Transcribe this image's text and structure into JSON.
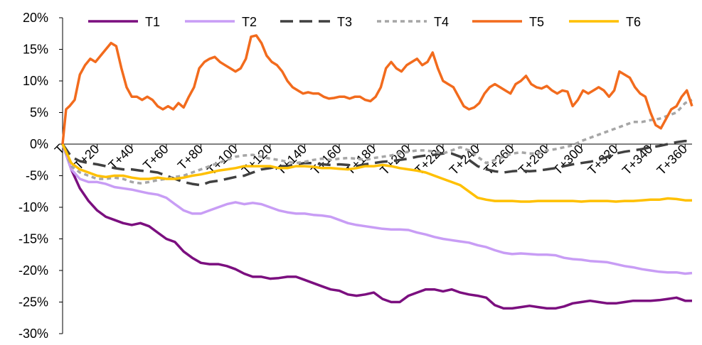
{
  "chart_data": {
    "type": "line",
    "title": "",
    "xlabel": "",
    "ylabel": "",
    "ylim": [
      -30,
      20
    ],
    "y_ticks": [
      20,
      15,
      10,
      5,
      0,
      -5,
      -10,
      -15,
      -20,
      -25,
      -30
    ],
    "y_tick_format": "%",
    "x_range": [
      0,
      364
    ],
    "x_tick_values": [
      0,
      20,
      40,
      60,
      80,
      100,
      120,
      140,
      160,
      180,
      200,
      220,
      240,
      260,
      280,
      300,
      320,
      340,
      360
    ],
    "x_tick_labels": [
      "T",
      "T+20",
      "T+40",
      "T+60",
      "T+80",
      "T+100",
      "T+120",
      "T+140",
      "T+160",
      "T+180",
      "T+200",
      "T+220",
      "T+240",
      "T+260",
      "T+280",
      "T+300",
      "T+320",
      "T+340",
      "T+360"
    ],
    "grid": false,
    "legend_position": "top",
    "series": [
      {
        "name": "T1",
        "color": "#7b0f7f",
        "dash": "solid",
        "x": [
          0,
          5,
          10,
          15,
          20,
          25,
          30,
          35,
          40,
          45,
          50,
          55,
          60,
          65,
          70,
          75,
          80,
          85,
          90,
          95,
          100,
          105,
          110,
          115,
          120,
          125,
          130,
          135,
          140,
          145,
          150,
          155,
          160,
          165,
          170,
          175,
          180,
          185,
          190,
          195,
          200,
          205,
          210,
          215,
          220,
          225,
          230,
          235,
          240,
          245,
          250,
          255,
          260,
          265,
          270,
          275,
          280,
          285,
          290,
          295,
          300,
          305,
          310,
          315,
          320,
          325,
          330,
          335,
          340,
          345,
          350,
          355,
          360,
          364
        ],
        "y": [
          0,
          -4,
          -7,
          -9,
          -10.5,
          -11.5,
          -12,
          -12.5,
          -12.8,
          -12.5,
          -13,
          -14,
          -15,
          -15.5,
          -17,
          -18,
          -18.8,
          -19,
          -19,
          -19.3,
          -19.8,
          -20.5,
          -21,
          -21,
          -21.3,
          -21.2,
          -21,
          -21,
          -21.5,
          -22,
          -22.5,
          -23,
          -23.2,
          -23.8,
          -24,
          -23.8,
          -23.5,
          -24.5,
          -25,
          -25,
          -24,
          -23.5,
          -23,
          -23,
          -23.3,
          -23,
          -23.5,
          -23.8,
          -24,
          -24.3,
          -25.5,
          -26,
          -26,
          -25.8,
          -25.6,
          -25.8,
          -26,
          -26,
          -25.7,
          -25.2,
          -25,
          -24.8,
          -25,
          -25.2,
          -25.2,
          -25,
          -24.8,
          -24.8,
          -24.8,
          -24.7,
          -24.5,
          -24.3,
          -24.8,
          -24.8
        ]
      },
      {
        "name": "T2",
        "color": "#c89df5",
        "dash": "solid",
        "x": [
          0,
          5,
          10,
          15,
          20,
          25,
          30,
          35,
          40,
          45,
          50,
          55,
          60,
          65,
          70,
          75,
          80,
          85,
          90,
          95,
          100,
          105,
          110,
          115,
          120,
          125,
          130,
          135,
          140,
          145,
          150,
          155,
          160,
          165,
          170,
          175,
          180,
          185,
          190,
          195,
          200,
          205,
          210,
          215,
          220,
          225,
          230,
          235,
          240,
          245,
          250,
          255,
          260,
          265,
          270,
          275,
          280,
          285,
          290,
          295,
          300,
          305,
          310,
          315,
          320,
          325,
          330,
          335,
          340,
          345,
          350,
          355,
          360,
          364
        ],
        "y": [
          0,
          -4,
          -5.5,
          -6,
          -6,
          -6.3,
          -6.8,
          -7,
          -7.2,
          -7.5,
          -7.8,
          -8,
          -8.5,
          -9.5,
          -10.5,
          -11,
          -11,
          -10.5,
          -10,
          -9.5,
          -9.2,
          -9.5,
          -9.3,
          -9.5,
          -10,
          -10.5,
          -10.8,
          -11,
          -11,
          -11.2,
          -11.3,
          -11.5,
          -12,
          -12.5,
          -12.8,
          -13,
          -13.2,
          -13.4,
          -13.5,
          -13.5,
          -13.6,
          -14,
          -14.3,
          -14.7,
          -15,
          -15.2,
          -15.4,
          -15.6,
          -16,
          -16.3,
          -16.8,
          -17.2,
          -17.4,
          -17.3,
          -17.4,
          -17.5,
          -17.5,
          -17.6,
          -18,
          -18.2,
          -18.3,
          -18.5,
          -18.6,
          -18.7,
          -19,
          -19.3,
          -19.5,
          -19.8,
          -20,
          -20.2,
          -20.3,
          -20.3,
          -20.5,
          -20.4
        ]
      },
      {
        "name": "T3",
        "color": "#404040",
        "dash": "long-dash",
        "x": [
          0,
          5,
          10,
          15,
          20,
          25,
          30,
          35,
          40,
          45,
          50,
          55,
          60,
          65,
          70,
          75,
          80,
          85,
          90,
          95,
          100,
          105,
          110,
          115,
          120,
          125,
          130,
          135,
          140,
          145,
          150,
          155,
          160,
          165,
          170,
          175,
          180,
          185,
          190,
          195,
          200,
          205,
          210,
          215,
          220,
          225,
          230,
          235,
          240,
          245,
          250,
          255,
          260,
          265,
          270,
          275,
          280,
          285,
          290,
          295,
          300,
          305,
          310,
          315,
          320,
          325,
          330,
          335,
          340,
          345,
          350,
          355,
          360,
          364
        ],
        "y": [
          0,
          -2,
          -2.7,
          -3,
          -3.2,
          -3.5,
          -3.8,
          -4,
          -4,
          -4.2,
          -4.3,
          -4.5,
          -5,
          -5.5,
          -6,
          -6.3,
          -6.5,
          -6,
          -5.8,
          -5.5,
          -5.2,
          -5,
          -4.5,
          -4,
          -3.8,
          -3.5,
          -3.5,
          -3.2,
          -3,
          -3,
          -3.2,
          -3.3,
          -3.2,
          -3.3,
          -3.5,
          -3.2,
          -3,
          -2.8,
          -2.7,
          -2.5,
          -2.3,
          -2,
          -1.8,
          -1.7,
          -1.5,
          -1.5,
          -2,
          -2.5,
          -3.5,
          -4,
          -4.3,
          -4.5,
          -4.3,
          -4.2,
          -4.3,
          -4.2,
          -4,
          -3.8,
          -3.5,
          -3.2,
          -3,
          -2.8,
          -2.5,
          -2,
          -1.5,
          -1.2,
          -1,
          -0.8,
          -0.5,
          -0.3,
          0,
          0.3,
          0.5,
          0.4
        ]
      },
      {
        "name": "T4",
        "color": "#a6a6a6",
        "dash": "short-dash",
        "x": [
          0,
          5,
          10,
          15,
          20,
          25,
          30,
          35,
          40,
          45,
          50,
          55,
          60,
          65,
          70,
          75,
          80,
          85,
          90,
          95,
          100,
          105,
          110,
          115,
          120,
          125,
          130,
          135,
          140,
          145,
          150,
          155,
          160,
          165,
          170,
          175,
          180,
          185,
          190,
          195,
          200,
          205,
          210,
          215,
          220,
          225,
          230,
          235,
          240,
          245,
          250,
          255,
          260,
          265,
          270,
          275,
          280,
          285,
          290,
          295,
          300,
          305,
          310,
          315,
          320,
          325,
          330,
          335,
          340,
          345,
          350,
          355,
          360,
          364
        ],
        "y": [
          0,
          -3.5,
          -4.5,
          -5,
          -5.5,
          -5.5,
          -5.3,
          -5.5,
          -6,
          -6.2,
          -6,
          -5.7,
          -5.5,
          -5.2,
          -5,
          -4.5,
          -4,
          -3.5,
          -3,
          -2.5,
          -2,
          -1.8,
          -1.7,
          -2,
          -2.3,
          -2.5,
          -2.8,
          -3,
          -2.8,
          -2.5,
          -2.3,
          -2.5,
          -2.3,
          -2.2,
          -2.3,
          -2.5,
          -2.2,
          -2,
          -1.8,
          -1.5,
          -1.2,
          -1,
          -1,
          -1.2,
          -1.5,
          -1,
          -0.5,
          -1,
          -2,
          -3,
          -2.5,
          -2,
          -1.5,
          -1.3,
          -1.5,
          -1.5,
          -1,
          -0.8,
          -0.5,
          -0.2,
          0.5,
          1,
          1.5,
          2,
          2.5,
          3,
          3.5,
          3.5,
          3.8,
          4,
          4.5,
          5,
          6.5,
          7
        ]
      },
      {
        "name": "T5",
        "color": "#f26b1d",
        "dash": "solid",
        "x": [
          0,
          2,
          4,
          7,
          10,
          13,
          16,
          19,
          22,
          25,
          28,
          31,
          34,
          37,
          40,
          43,
          46,
          49,
          52,
          55,
          58,
          61,
          64,
          67,
          70,
          73,
          76,
          79,
          82,
          85,
          88,
          91,
          94,
          97,
          100,
          103,
          106,
          109,
          112,
          115,
          118,
          121,
          124,
          127,
          130,
          133,
          136,
          139,
          142,
          145,
          148,
          151,
          154,
          157,
          160,
          163,
          166,
          169,
          172,
          175,
          178,
          181,
          184,
          187,
          190,
          193,
          196,
          199,
          202,
          205,
          208,
          211,
          214,
          217,
          220,
          223,
          226,
          229,
          232,
          235,
          238,
          241,
          244,
          247,
          250,
          253,
          256,
          259,
          262,
          265,
          268,
          271,
          274,
          277,
          280,
          283,
          286,
          289,
          292,
          295,
          298,
          301,
          304,
          307,
          310,
          313,
          316,
          319,
          322,
          325,
          328,
          331,
          334,
          337,
          340,
          343,
          346,
          349,
          352,
          355,
          358,
          361,
          364
        ],
        "y": [
          0,
          5.5,
          6,
          7,
          11,
          12.5,
          13.5,
          13,
          14,
          15,
          16,
          15.5,
          12,
          9,
          7.5,
          7.5,
          7,
          7.5,
          7,
          6,
          5.5,
          6,
          5.5,
          6.5,
          5.8,
          7.5,
          9,
          12,
          13,
          13.5,
          13.8,
          13,
          12.5,
          12,
          11.5,
          12,
          13.5,
          17,
          17.2,
          16,
          14,
          13,
          12.5,
          11.5,
          10,
          9,
          8.5,
          8,
          8.2,
          8,
          8,
          7.5,
          7.2,
          7.3,
          7.5,
          7.5,
          7.2,
          7.5,
          7.5,
          7,
          6.8,
          7.5,
          9,
          12,
          13,
          12,
          11.5,
          12.5,
          13,
          13.5,
          12.5,
          13,
          14.5,
          12,
          10,
          9.5,
          9,
          7.5,
          6,
          5.5,
          5.8,
          6.5,
          8,
          9,
          9.5,
          9,
          8.5,
          8,
          9.5,
          10,
          10.8,
          9.5,
          9,
          8.8,
          9.2,
          8.5,
          8,
          8.5,
          8.3,
          6,
          7,
          8.5,
          8,
          8.5,
          9,
          8.5,
          7.5,
          8.5,
          11.5,
          11,
          10.5,
          9,
          8,
          7.5,
          5,
          3,
          2.5,
          4,
          5.5,
          6,
          7.5,
          8.5,
          6
        ]
      },
      {
        "name": "T6",
        "color": "#ffc000",
        "dash": "solid",
        "x": [
          0,
          5,
          10,
          15,
          20,
          25,
          30,
          35,
          40,
          45,
          50,
          55,
          60,
          65,
          70,
          75,
          80,
          85,
          90,
          95,
          100,
          105,
          110,
          115,
          120,
          125,
          130,
          135,
          140,
          145,
          150,
          155,
          160,
          165,
          170,
          175,
          180,
          185,
          190,
          195,
          200,
          205,
          210,
          215,
          220,
          225,
          230,
          235,
          240,
          245,
          250,
          255,
          260,
          265,
          270,
          275,
          280,
          285,
          290,
          295,
          300,
          305,
          310,
          315,
          320,
          325,
          330,
          335,
          340,
          345,
          350,
          355,
          360,
          364
        ],
        "y": [
          0,
          -3,
          -4,
          -4.5,
          -5,
          -5.2,
          -5,
          -5,
          -5.3,
          -5.5,
          -5.5,
          -5.3,
          -5.5,
          -5.5,
          -5.3,
          -5,
          -4.8,
          -4.5,
          -4.2,
          -4,
          -3.8,
          -3.5,
          -3.5,
          -3.5,
          -3.5,
          -3.8,
          -3.8,
          -3.5,
          -3.5,
          -3.6,
          -3.8,
          -3.8,
          -3.9,
          -4,
          -3.8,
          -3.5,
          -3.5,
          -3.3,
          -3.5,
          -3.8,
          -4,
          -4.2,
          -4.5,
          -5,
          -5.5,
          -6,
          -6.5,
          -7.5,
          -8.5,
          -8.8,
          -9,
          -9,
          -9,
          -9.1,
          -9.1,
          -9,
          -9,
          -9,
          -9,
          -9,
          -9.1,
          -9,
          -9,
          -9,
          -9.1,
          -9,
          -9,
          -8.9,
          -8.8,
          -8.8,
          -8.6,
          -8.7,
          -8.9,
          -8.9
        ]
      }
    ]
  }
}
